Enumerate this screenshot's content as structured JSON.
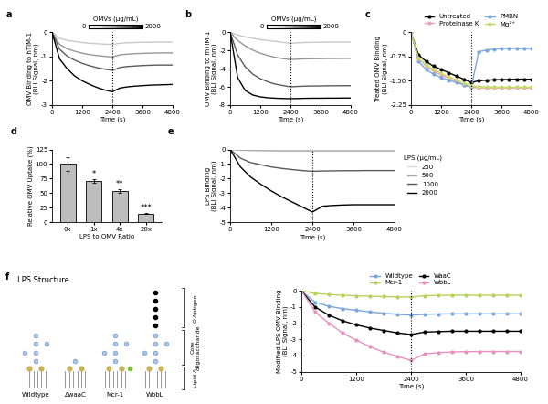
{
  "chart_data": [
    {
      "panel": "a",
      "type": "line",
      "xlabel": "Time (s)",
      "ylabel": "OMV Binding to hTIM-1\n(BLI Signal, nm)",
      "xlim": [
        0,
        4800
      ],
      "xticks": [
        0,
        1200,
        2400,
        3600,
        4800
      ],
      "ylim": [
        -3,
        0
      ],
      "yticks": [
        0,
        -1,
        -2,
        -3
      ],
      "vline": 2400,
      "colorbar": {
        "label": "OMVs (μg/mL)",
        "range": [
          0,
          2000
        ]
      },
      "x": [
        0,
        300,
        600,
        900,
        1200,
        1500,
        1800,
        2100,
        2400,
        2700,
        3000,
        3300,
        3600,
        3900,
        4200,
        4500,
        4800
      ],
      "series": [
        {
          "color": "#c8c8c8",
          "values": [
            0,
            -0.25,
            -0.33,
            -0.38,
            -0.42,
            -0.45,
            -0.47,
            -0.49,
            -0.5,
            -0.45,
            -0.43,
            -0.42,
            -0.41,
            -0.41,
            -0.4,
            -0.4,
            -0.4
          ]
        },
        {
          "color": "#969696",
          "values": [
            0,
            -0.5,
            -0.68,
            -0.78,
            -0.86,
            -0.92,
            -0.96,
            -0.99,
            -1.02,
            -0.93,
            -0.9,
            -0.88,
            -0.87,
            -0.86,
            -0.85,
            -0.85,
            -0.85
          ]
        },
        {
          "color": "#5a5a5a",
          "values": [
            0,
            -0.7,
            -0.98,
            -1.15,
            -1.28,
            -1.38,
            -1.46,
            -1.52,
            -1.57,
            -1.45,
            -1.41,
            -1.39,
            -1.37,
            -1.36,
            -1.35,
            -1.35,
            -1.35
          ]
        },
        {
          "color": "#000000",
          "values": [
            0,
            -1.1,
            -1.5,
            -1.8,
            -2.0,
            -2.15,
            -2.28,
            -2.38,
            -2.45,
            -2.3,
            -2.25,
            -2.22,
            -2.2,
            -2.18,
            -2.17,
            -2.16,
            -2.15
          ]
        }
      ]
    },
    {
      "panel": "b",
      "type": "line",
      "xlabel": "Time (s)",
      "ylabel": "OMV Binding to mTIM-1\n(BLI Signal, nm)",
      "xlim": [
        0,
        4800
      ],
      "xticks": [
        0,
        1200,
        2400,
        3600,
        4800
      ],
      "ylim": [
        -8,
        0
      ],
      "yticks": [
        0,
        -2,
        -4,
        -6,
        -8
      ],
      "vline": 2400,
      "colorbar": {
        "label": "OMVs (μg/mL)",
        "range": [
          0,
          2000
        ]
      },
      "x": [
        0,
        300,
        600,
        900,
        1200,
        1500,
        1800,
        2100,
        2400,
        2700,
        3000,
        3300,
        3600,
        3900,
        4200,
        4500,
        4800
      ],
      "series": [
        {
          "color": "#c8c8c8",
          "values": [
            0,
            -0.3,
            -0.5,
            -0.65,
            -0.8,
            -0.9,
            -1.0,
            -1.1,
            -1.2,
            -1.15,
            -1.12,
            -1.1,
            -1.1,
            -1.08,
            -1.08,
            -1.07,
            -1.07
          ]
        },
        {
          "color": "#969696",
          "values": [
            0,
            -0.9,
            -1.5,
            -1.95,
            -2.3,
            -2.55,
            -2.75,
            -2.9,
            -3.0,
            -2.95,
            -2.92,
            -2.9,
            -2.9,
            -2.88,
            -2.88,
            -2.87,
            -2.87
          ]
        },
        {
          "color": "#5a5a5a",
          "values": [
            0,
            -2.5,
            -3.8,
            -4.6,
            -5.1,
            -5.45,
            -5.7,
            -5.85,
            -6.0,
            -5.95,
            -5.92,
            -5.9,
            -5.9,
            -5.88,
            -5.88,
            -5.87,
            -5.87
          ]
        },
        {
          "color": "#000000",
          "values": [
            0,
            -5.0,
            -6.4,
            -6.9,
            -7.1,
            -7.2,
            -7.25,
            -7.28,
            -7.3,
            -7.28,
            -7.26,
            -7.25,
            -7.25,
            -7.24,
            -7.24,
            -7.23,
            -7.23
          ]
        }
      ]
    },
    {
      "panel": "c",
      "type": "line",
      "xlabel": "Time (s)",
      "ylabel": "Treated OMV Binding\n(BLI Signal, nm)",
      "xlim": [
        0,
        4800
      ],
      "xticks": [
        0,
        1200,
        2400,
        3600,
        4800
      ],
      "ylim": [
        -2.25,
        0
      ],
      "yticks": [
        0,
        -0.75,
        {
          "value": -1.5,
          "label": "-1.50"
        },
        -2.25
      ],
      "vline": 2400,
      "legend": "top",
      "x": [
        0,
        300,
        600,
        900,
        1200,
        1500,
        1800,
        2100,
        2400,
        2700,
        3000,
        3300,
        3600,
        3900,
        4200,
        4500,
        4800
      ],
      "series": [
        {
          "name": "Untreated",
          "color": "#000000",
          "marker": "o",
          "values": [
            0,
            -0.7,
            -0.9,
            -1.05,
            -1.15,
            -1.25,
            -1.35,
            -1.45,
            -1.55,
            -1.5,
            -1.48,
            -1.47,
            -1.46,
            -1.46,
            -1.45,
            -1.45,
            -1.45
          ]
        },
        {
          "name": "Proteinase K",
          "color": "#e8a0b4",
          "marker": "o",
          "values": [
            0,
            -0.8,
            -1.05,
            -1.2,
            -1.32,
            -1.42,
            -1.52,
            -1.62,
            -1.7,
            -1.72,
            -1.72,
            -1.72,
            -1.72,
            -1.72,
            -1.72,
            -1.72,
            -1.72
          ]
        },
        {
          "name": "PMBN",
          "color": "#7aa6e0",
          "marker": "o",
          "values": [
            0,
            -0.9,
            -1.15,
            -1.3,
            -1.4,
            -1.48,
            -1.55,
            -1.62,
            -1.7,
            -0.6,
            -0.55,
            -0.52,
            -0.5,
            -0.5,
            -0.5,
            -0.5,
            -0.5
          ]
        },
        {
          "name": "Mg²⁺",
          "color": "#c8d86a",
          "marker": "o",
          "values": [
            0,
            -0.8,
            -1.0,
            -1.15,
            -1.27,
            -1.37,
            -1.47,
            -1.57,
            -1.65,
            -1.68,
            -1.69,
            -1.7,
            -1.7,
            -1.7,
            -1.7,
            -1.7,
            -1.7
          ]
        }
      ]
    },
    {
      "panel": "d",
      "type": "bar",
      "xlabel": "LPS to OMV Ratio",
      "ylabel": "Relative OMV Uptake (%)",
      "categories": [
        "0x",
        "1x",
        "4x",
        "20x"
      ],
      "values": [
        100,
        71,
        54,
        15
      ],
      "errors": [
        12,
        3,
        3,
        1
      ],
      "annotations": [
        null,
        "*",
        "**",
        "***"
      ],
      "color": "#bdbdbd",
      "ylim": [
        0,
        125
      ],
      "yticks": [
        0,
        25,
        50,
        75,
        100,
        125
      ]
    },
    {
      "panel": "e",
      "type": "line",
      "xlabel": "Time (s)",
      "ylabel": "LPS Binding\n(BLI Signal, nm)",
      "xlim": [
        0,
        4800
      ],
      "xticks": [
        0,
        1200,
        2400,
        3600,
        4800
      ],
      "ylim": [
        -5,
        0
      ],
      "yticks": [
        0,
        -1,
        -2,
        -3,
        -4,
        -5
      ],
      "vline": 2400,
      "legend": "right",
      "legend_title": "LPS (μg/mL)",
      "x": [
        0,
        300,
        600,
        900,
        1200,
        1500,
        1800,
        2100,
        2400,
        2700,
        3000,
        3300,
        3600,
        3900,
        4200,
        4500,
        4800
      ],
      "series": [
        {
          "name": "250",
          "color": "#d9d9d9",
          "values": [
            0,
            -0.01,
            -0.02,
            -0.02,
            -0.02,
            -0.03,
            -0.03,
            -0.03,
            -0.03,
            -0.03,
            -0.03,
            -0.03,
            -0.03,
            -0.03,
            -0.03,
            -0.03,
            -0.03
          ]
        },
        {
          "name": "500",
          "color": "#a6a6a6",
          "values": [
            0,
            -0.05,
            -0.07,
            -0.08,
            -0.09,
            -0.1,
            -0.1,
            -0.1,
            -0.1,
            -0.1,
            -0.1,
            -0.1,
            -0.1,
            -0.1,
            -0.1,
            -0.1,
            -0.1
          ]
        },
        {
          "name": "1000",
          "color": "#595959",
          "values": [
            0,
            -0.6,
            -0.9,
            -1.05,
            -1.2,
            -1.3,
            -1.38,
            -1.45,
            -1.5,
            -1.48,
            -1.47,
            -1.46,
            -1.46,
            -1.45,
            -1.45,
            -1.45,
            -1.45
          ]
        },
        {
          "name": "2000",
          "color": "#000000",
          "values": [
            0,
            -1.2,
            -1.9,
            -2.4,
            -2.85,
            -3.25,
            -3.6,
            -3.95,
            -4.3,
            -3.9,
            -3.85,
            -3.82,
            -3.8,
            -3.8,
            -3.8,
            -3.8,
            -3.8
          ]
        }
      ]
    },
    {
      "panel": null,
      "type": "line",
      "xlabel": "Time (s)",
      "ylabel": "Modified LPS OMV Binding\n(BLI Signal, nm)",
      "xlim": [
        0,
        4800
      ],
      "xticks": [
        0,
        1200,
        2400,
        3600,
        4800
      ],
      "ylim": [
        -5,
        0
      ],
      "yticks": [
        0,
        -1,
        -2,
        -3,
        -4,
        -5
      ],
      "vline": 2400,
      "legend": "top",
      "x": [
        0,
        300,
        600,
        900,
        1200,
        1500,
        1800,
        2100,
        2400,
        2700,
        3000,
        3300,
        3600,
        3900,
        4200,
        4500,
        4800
      ],
      "series": [
        {
          "name": "Wildtype",
          "color": "#7aa6e0",
          "marker": "o",
          "values": [
            0,
            -0.7,
            -0.95,
            -1.1,
            -1.2,
            -1.3,
            -1.38,
            -1.45,
            -1.5,
            -1.45,
            -1.43,
            -1.42,
            -1.42,
            -1.42,
            -1.42,
            -1.42,
            -1.42
          ]
        },
        {
          "name": "Mcr-1",
          "color": "#b5d35a",
          "marker": "o",
          "values": [
            0,
            -0.15,
            -0.22,
            -0.27,
            -0.3,
            -0.33,
            -0.35,
            -0.37,
            -0.38,
            -0.3,
            -0.28,
            -0.27,
            -0.27,
            -0.27,
            -0.27,
            -0.27,
            -0.27
          ]
        },
        {
          "name": "WaaC",
          "color": "#000000",
          "marker": "o",
          "values": [
            0,
            -1.0,
            -1.5,
            -1.85,
            -2.1,
            -2.3,
            -2.45,
            -2.6,
            -2.7,
            -2.55,
            -2.52,
            -2.5,
            -2.5,
            -2.5,
            -2.5,
            -2.5,
            -2.5
          ]
        },
        {
          "name": "WbbL",
          "color": "#e88fc0",
          "marker": "o",
          "values": [
            0,
            -1.3,
            -2.0,
            -2.6,
            -3.05,
            -3.45,
            -3.8,
            -4.05,
            -4.3,
            -3.9,
            -3.82,
            -3.78,
            -3.76,
            -3.75,
            -3.75,
            -3.75,
            -3.75
          ]
        }
      ]
    }
  ],
  "diagram": {
    "panel": "f",
    "title": "LPS Structure",
    "strains": [
      "Wildtype",
      "ΔwaaC",
      "Mcr-1",
      "WbbL"
    ],
    "regions": [
      "O-Antigen",
      "Core\noligosaccharide",
      "Lipid A"
    ]
  }
}
